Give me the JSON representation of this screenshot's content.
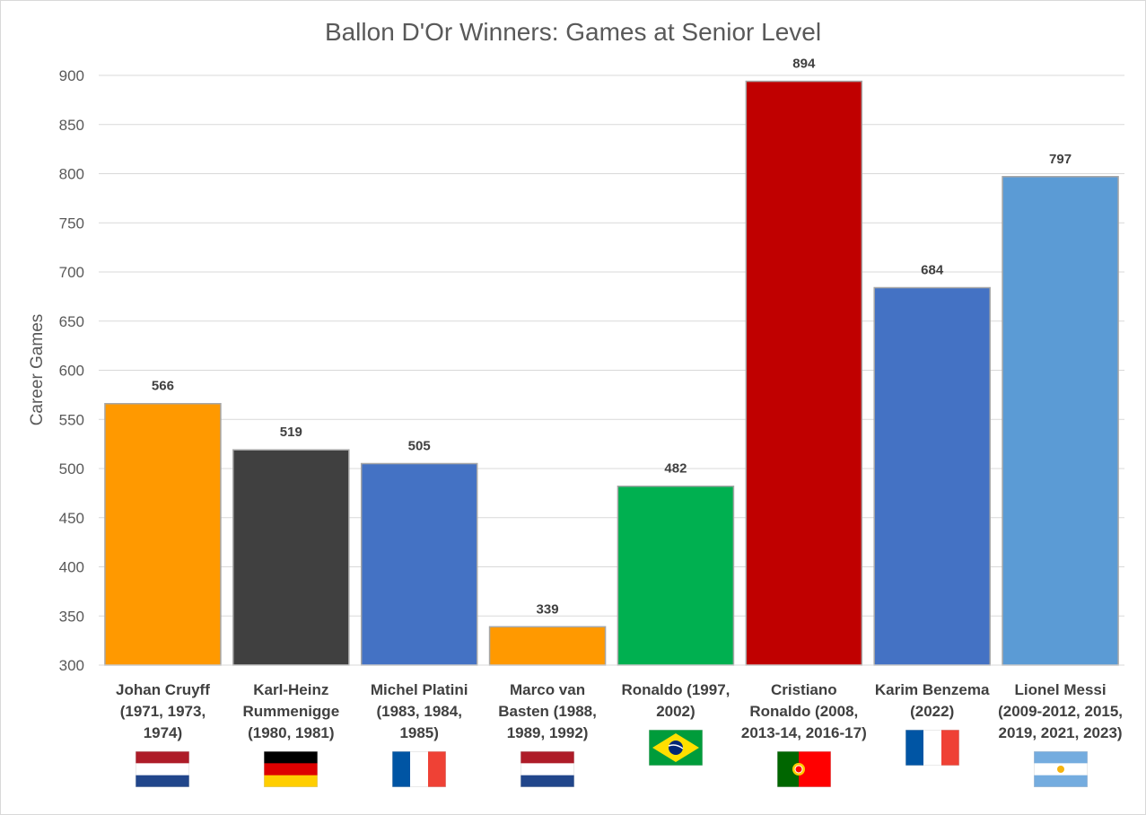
{
  "chart_data": {
    "type": "bar",
    "title": "Ballon D'Or Winners: Games at Senior Level",
    "ylabel": "Career Games",
    "xlabel": "",
    "ylim": [
      300,
      900
    ],
    "yticks": [
      300,
      350,
      400,
      450,
      500,
      550,
      600,
      650,
      700,
      750,
      800,
      850,
      900
    ],
    "grid": true,
    "legend": "none",
    "categories": [
      "Johan Cruyff (1971, 1973, 1974)",
      "Karl-Heinz Rummenigge (1980, 1981)",
      "Michel Platini (1983, 1984, 1985)",
      "Marco van Basten (1988, 1989, 1992)",
      "Ronaldo (1997, 2002)",
      "Cristiano Ronaldo (2008, 2013-14, 2016-17)",
      "Karim Benzema (2022)",
      "Lionel Messi (2009-2012, 2015, 2019, 2021, 2023)"
    ],
    "values": [
      566,
      519,
      505,
      339,
      482,
      894,
      684,
      797
    ],
    "bar_colors": [
      "#FF9900",
      "#404040",
      "#4472C4",
      "#FF9900",
      "#00B050",
      "#C00000",
      "#4472C4",
      "#5B9BD5"
    ],
    "flags": [
      "netherlands-flag-icon",
      "germany-flag-icon",
      "france-flag-icon",
      "netherlands-flag-icon",
      "brazil-flag-icon",
      "portugal-flag-icon",
      "france-flag-icon",
      "argentina-flag-icon"
    ]
  }
}
